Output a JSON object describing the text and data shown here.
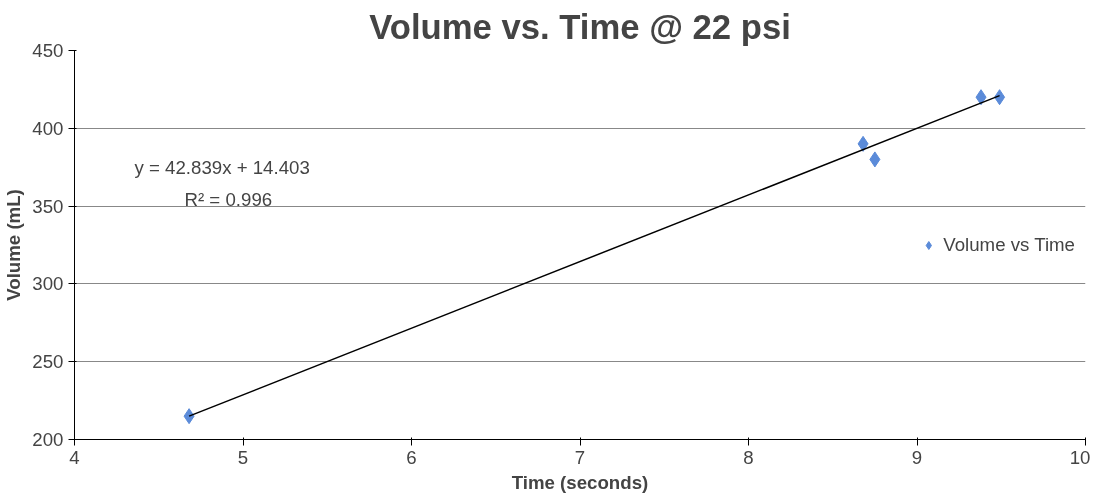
{
  "chart_data": {
    "type": "scatter",
    "title": "Volume vs. Time @ 22 psi",
    "xlabel": "Time (seconds)",
    "ylabel": "Volume (mL)",
    "xlim": [
      4,
      10
    ],
    "xticks": [
      4,
      5,
      6,
      7,
      8,
      9,
      10
    ],
    "ylim": [
      200,
      450
    ],
    "yticks": [
      200,
      250,
      300,
      350,
      400,
      450
    ],
    "grid": "y",
    "legend": "right",
    "marker": "diamond",
    "annotations": [
      "y = 42.839x + 14.403",
      "R² = 0.996"
    ],
    "series": [
      {
        "name": "Volume vs Time",
        "color": "#5b8bd9",
        "x": [
          4.68,
          8.68,
          8.75,
          9.38,
          9.49
        ],
        "values": [
          215,
          390,
          380,
          420,
          420
        ]
      },
      {
        "type": "line",
        "color": "#000000",
        "x": [
          4.68,
          9.49
        ],
        "values": [
          215,
          421
        ],
        "marker": "none",
        "line_style": "solid"
      }
    ]
  }
}
